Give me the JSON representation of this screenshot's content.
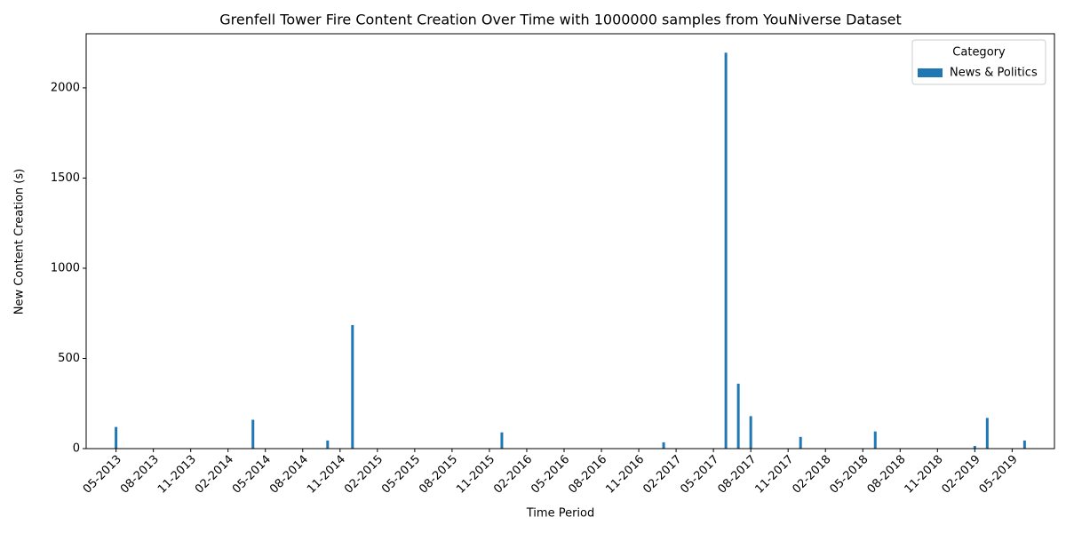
{
  "chart_data": {
    "type": "bar",
    "title": "Grenfell Tower Fire Content Creation Over Time with 1000000 samples from YouNiverse Dataset",
    "x_label": "Time Period",
    "y_label": "New Content Creation (s)",
    "categories": [
      "05-2013",
      null,
      null,
      "08-2013",
      null,
      null,
      "11-2013",
      null,
      null,
      "02-2014",
      null,
      null,
      "05-2014",
      null,
      null,
      "08-2014",
      null,
      null,
      "11-2014",
      null,
      null,
      "02-2015",
      null,
      null,
      "05-2015",
      null,
      null,
      "08-2015",
      null,
      null,
      "11-2015",
      null,
      null,
      "02-2016",
      null,
      null,
      "05-2016",
      null,
      null,
      "08-2016",
      null,
      null,
      "11-2016",
      null,
      null,
      "02-2017",
      null,
      null,
      "05-2017",
      null,
      null,
      "08-2017",
      null,
      null,
      "11-2017",
      null,
      null,
      "02-2018",
      null,
      null,
      "05-2018",
      null,
      null,
      "08-2018",
      null,
      null,
      "11-2018",
      null,
      null,
      "02-2019",
      null,
      null,
      "05-2019",
      null
    ],
    "series": [
      {
        "name": "News & Politics",
        "color": "#1f77b4",
        "values": [
          120,
          0,
          0,
          0,
          0,
          0,
          0,
          0,
          0,
          0,
          0,
          160,
          0,
          0,
          0,
          0,
          0,
          45,
          0,
          685,
          0,
          0,
          0,
          0,
          0,
          0,
          0,
          0,
          0,
          0,
          0,
          90,
          0,
          0,
          0,
          0,
          0,
          0,
          0,
          0,
          0,
          0,
          0,
          0,
          35,
          0,
          0,
          0,
          0,
          2195,
          360,
          180,
          0,
          0,
          0,
          65,
          0,
          0,
          0,
          0,
          0,
          95,
          0,
          0,
          0,
          0,
          0,
          0,
          0,
          15,
          170,
          0,
          0,
          45
        ]
      }
    ],
    "legend_title": "Category",
    "legend": "upper right",
    "ylim": [
      0,
      2300
    ],
    "yticks": [
      0,
      500,
      1000,
      1500,
      2000
    ]
  }
}
